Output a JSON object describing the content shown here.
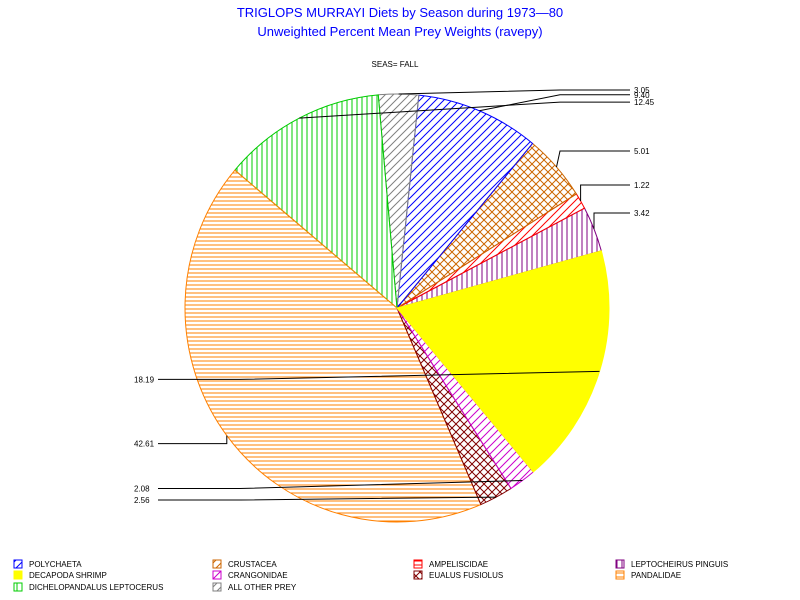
{
  "chart_data": {
    "type": "pie",
    "title": "TRIGLOPS MURRAYI Diets by Season during 1973—80",
    "subtitle": "Unweighted Percent Mean Prey Weights (ravepy)",
    "panel_label": "SEAS= FALL",
    "slices": [
      {
        "category": "LEPTOCHEIRUS PINGUIS",
        "value": 3.42,
        "label": "3.42",
        "color": "#800080",
        "pattern": "vertical",
        "label_side": "right"
      },
      {
        "category": "AMPELISCIDAE",
        "value": 1.22,
        "label": "1.22",
        "color": "#ff0000",
        "pattern": "diag-up",
        "label_side": "right"
      },
      {
        "category": "CRUSTACEA",
        "value": 5.01,
        "label": "5.01",
        "color": "#cc6600",
        "pattern": "crosshatch",
        "label_side": "right"
      },
      {
        "category": "POLYCHAETA",
        "value": 9.4,
        "label": "9.40",
        "color": "#0000ff",
        "pattern": "diag-up",
        "label_side": "right"
      },
      {
        "category": "ALL OTHER PREY",
        "value": 3.05,
        "label": "3.05",
        "color": "#808080",
        "pattern": "diag-up",
        "label_side": "right"
      },
      {
        "category": "DICHELOPANDALUS LEPTOCERUS",
        "value": 12.45,
        "label": "12.45",
        "color": "#00cc00",
        "pattern": "vertical",
        "label_side": "right"
      },
      {
        "category": "PANDALIDAE",
        "value": 42.61,
        "label": "42.61",
        "color": "#ff8000",
        "pattern": "horizontal",
        "label_side": "left"
      },
      {
        "category": "EUALUS FUSIOLUS",
        "value": 2.56,
        "label": "2.56",
        "color": "#800000",
        "pattern": "crosshatch",
        "label_side": "left"
      },
      {
        "category": "CRANGONIDAE",
        "value": 2.08,
        "label": "2.08",
        "color": "#cc00cc",
        "pattern": "diag-up",
        "label_side": "left"
      },
      {
        "category": "DECAPODA SHRIMP",
        "value": 18.19,
        "label": "18.19",
        "color": "#ffff00",
        "pattern": "solid",
        "label_side": "left"
      }
    ],
    "legend": {
      "placement": "bottom",
      "items": [
        {
          "label": "POLYCHAETA",
          "color": "#0000ff",
          "pattern": "diag-up"
        },
        {
          "label": "CRUSTACEA",
          "color": "#cc6600",
          "pattern": "diag-up"
        },
        {
          "label": "AMPELISCIDAE",
          "color": "#ff0000",
          "pattern": "horizontal"
        },
        {
          "label": "LEPTOCHEIRUS PINGUIS",
          "color": "#800080",
          "pattern": "vertical"
        },
        {
          "label": "DECAPODA SHRIMP",
          "color": "#ffff00",
          "pattern": "solid"
        },
        {
          "label": "CRANGONIDAE",
          "color": "#cc00cc",
          "pattern": "diag-up"
        },
        {
          "label": "EUALUS FUSIOLUS",
          "color": "#800000",
          "pattern": "crosshatch"
        },
        {
          "label": "PANDALIDAE",
          "color": "#ff8000",
          "pattern": "horizontal"
        },
        {
          "label": "DICHELOPANDALUS LEPTOCERUS",
          "color": "#00cc00",
          "pattern": "vertical"
        },
        {
          "label": "ALL OTHER PREY",
          "color": "#808080",
          "pattern": "diag-up"
        }
      ]
    }
  }
}
